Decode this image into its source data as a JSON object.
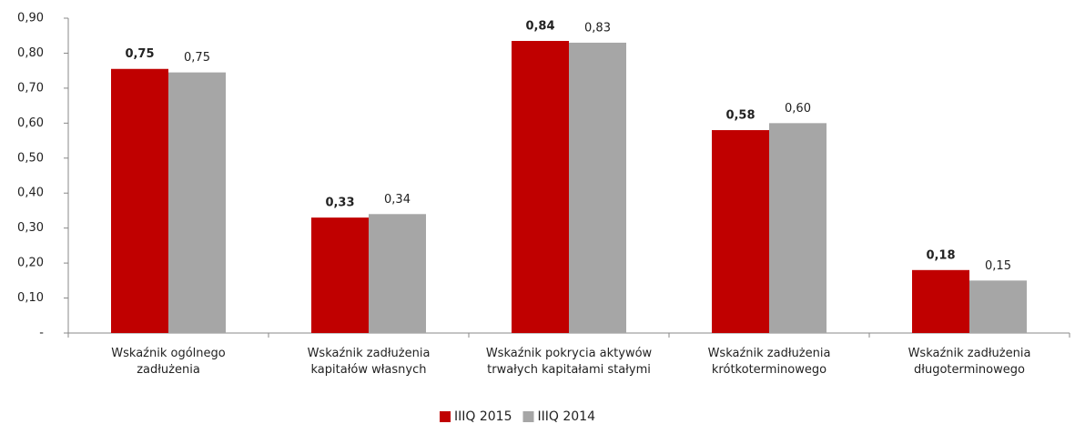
{
  "chart_data": {
    "type": "bar",
    "categories": [
      "Wskaźnik ogólnego\nzadłużenia",
      "Wskaźnik zadłużenia\nkapitałów własnych",
      "Wskaźnik pokrycia aktywów\ntrwałych kapitałami stałymi",
      "Wskaźnik zadłużenia\nkrótkoterminowego",
      "Wskaźnik zadłużenia\ndługoterminowego"
    ],
    "series": [
      {
        "name": "IIIQ 2015",
        "color": "#c00000",
        "values": [
          0.755,
          0.33,
          0.835,
          0.58,
          0.18
        ],
        "value_labels": [
          "0,75",
          "0,33",
          "0,84",
          "0,58",
          "0,18"
        ]
      },
      {
        "name": "IIIQ 2014",
        "color": "#a6a6a6",
        "values": [
          0.745,
          0.34,
          0.83,
          0.6,
          0.15
        ],
        "value_labels": [
          "0,75",
          "0,34",
          "0,83",
          "0,60",
          "0,15"
        ]
      }
    ],
    "ylim": [
      0,
      0.9
    ],
    "yticks": [
      {
        "value": 0,
        "label": "-"
      },
      {
        "value": 0.1,
        "label": "0,10"
      },
      {
        "value": 0.2,
        "label": "0,20"
      },
      {
        "value": 0.3,
        "label": "0,30"
      },
      {
        "value": 0.4,
        "label": "0,40"
      },
      {
        "value": 0.5,
        "label": "0,50"
      },
      {
        "value": 0.6,
        "label": "0,60"
      },
      {
        "value": 0.7,
        "label": "0,70"
      },
      {
        "value": 0.8,
        "label": "0,80"
      },
      {
        "value": 0.9,
        "label": "0,90"
      }
    ],
    "grid": false,
    "legend": "bottom"
  }
}
